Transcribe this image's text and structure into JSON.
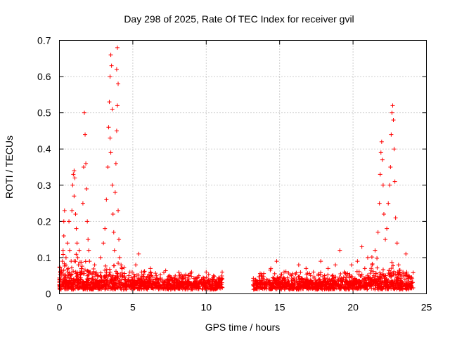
{
  "chart_data": {
    "type": "scatter",
    "title": "Day 298 of 2025, Rate Of TEC Index for receiver gvil",
    "xlabel": "GPS time / hours",
    "ylabel": "ROTI / TECUs",
    "xlim": [
      0,
      25
    ],
    "ylim": [
      0,
      0.7
    ],
    "xticks": [
      0,
      5,
      10,
      15,
      20,
      25
    ],
    "yticks": [
      0,
      0.1,
      0.2,
      0.3,
      0.4,
      0.5,
      0.6,
      0.7
    ],
    "xtick_labels": [
      "0",
      "5",
      "10",
      "15",
      "20",
      "25"
    ],
    "ytick_labels": [
      "0",
      "0.1",
      "0.2",
      "0.3",
      "0.4",
      "0.5",
      "0.6",
      "0.7"
    ],
    "grid": true,
    "marker": "+",
    "color": "#ff0000",
    "data_gap_hours": [
      11.1,
      13.2
    ],
    "series": [
      {
        "name": "ROTI",
        "points": [
          [
            0.05,
            0.02
          ],
          [
            0.1,
            0.04
          ],
          [
            0.15,
            0.06
          ],
          [
            0.2,
            0.09
          ],
          [
            0.25,
            0.12
          ],
          [
            0.3,
            0.2
          ],
          [
            0.35,
            0.23
          ],
          [
            0.3,
            0.16
          ],
          [
            0.4,
            0.05
          ],
          [
            0.45,
            0.1
          ],
          [
            0.5,
            0.03
          ],
          [
            0.55,
            0.14
          ],
          [
            0.6,
            0.07
          ],
          [
            0.65,
            0.2
          ],
          [
            0.7,
            0.12
          ],
          [
            0.75,
            0.05
          ],
          [
            0.8,
            0.09
          ],
          [
            0.85,
            0.23
          ],
          [
            0.9,
            0.3
          ],
          [
            0.95,
            0.33
          ],
          [
            1.0,
            0.34
          ],
          [
            1.05,
            0.32
          ],
          [
            1.0,
            0.27
          ],
          [
            1.1,
            0.22
          ],
          [
            1.15,
            0.18
          ],
          [
            1.2,
            0.14
          ],
          [
            1.25,
            0.1
          ],
          [
            1.3,
            0.08
          ],
          [
            1.35,
            0.12
          ],
          [
            1.4,
            0.06
          ],
          [
            1.45,
            0.04
          ],
          [
            1.5,
            0.07
          ],
          [
            1.6,
            0.25
          ],
          [
            1.65,
            0.35
          ],
          [
            1.7,
            0.5
          ],
          [
            1.75,
            0.44
          ],
          [
            1.8,
            0.36
          ],
          [
            1.85,
            0.29
          ],
          [
            1.9,
            0.2
          ],
          [
            1.95,
            0.15
          ],
          [
            2.0,
            0.12
          ],
          [
            2.05,
            0.09
          ],
          [
            2.1,
            0.06
          ],
          [
            2.2,
            0.04
          ],
          [
            2.4,
            0.08
          ],
          [
            2.6,
            0.05
          ],
          [
            2.8,
            0.1
          ],
          [
            3.0,
            0.14
          ],
          [
            3.1,
            0.18
          ],
          [
            3.2,
            0.26
          ],
          [
            3.3,
            0.35
          ],
          [
            3.35,
            0.46
          ],
          [
            3.4,
            0.53
          ],
          [
            3.45,
            0.6
          ],
          [
            3.5,
            0.66
          ],
          [
            3.55,
            0.63
          ],
          [
            3.6,
            0.51
          ],
          [
            3.45,
            0.43
          ],
          [
            3.5,
            0.39
          ],
          [
            3.6,
            0.3
          ],
          [
            3.65,
            0.22
          ],
          [
            3.7,
            0.17
          ],
          [
            3.75,
            0.12
          ],
          [
            3.8,
            0.28
          ],
          [
            3.85,
            0.36
          ],
          [
            3.9,
            0.45
          ],
          [
            3.95,
            0.52
          ],
          [
            4.0,
            0.58
          ],
          [
            3.9,
            0.62
          ],
          [
            3.95,
            0.68
          ],
          [
            4.0,
            0.23
          ],
          [
            4.05,
            0.15
          ],
          [
            4.1,
            0.1
          ],
          [
            4.2,
            0.08
          ],
          [
            4.3,
            0.05
          ],
          [
            4.5,
            0.04
          ],
          [
            4.8,
            0.06
          ],
          [
            5.2,
            0.08
          ],
          [
            5.4,
            0.11
          ],
          [
            5.6,
            0.06
          ],
          [
            5.9,
            0.04
          ],
          [
            6.2,
            0.07
          ],
          [
            6.6,
            0.05
          ],
          [
            7.0,
            0.04
          ],
          [
            7.5,
            0.05
          ],
          [
            8.0,
            0.04
          ],
          [
            8.5,
            0.05
          ],
          [
            9.0,
            0.06
          ],
          [
            9.5,
            0.05
          ],
          [
            10.0,
            0.06
          ],
          [
            10.5,
            0.05
          ],
          [
            11.0,
            0.03
          ],
          [
            13.3,
            0.03
          ],
          [
            13.8,
            0.05
          ],
          [
            14.4,
            0.07
          ],
          [
            14.8,
            0.09
          ],
          [
            15.3,
            0.06
          ],
          [
            15.8,
            0.05
          ],
          [
            16.3,
            0.08
          ],
          [
            16.8,
            0.07
          ],
          [
            17.3,
            0.06
          ],
          [
            17.8,
            0.09
          ],
          [
            18.3,
            0.07
          ],
          [
            18.8,
            0.08
          ],
          [
            19.1,
            0.12
          ],
          [
            19.4,
            0.06
          ],
          [
            19.9,
            0.08
          ],
          [
            20.3,
            0.09
          ],
          [
            20.6,
            0.13
          ],
          [
            20.8,
            0.07
          ],
          [
            21.0,
            0.1
          ],
          [
            21.3,
            0.08
          ],
          [
            21.5,
            0.12
          ],
          [
            21.7,
            0.17
          ],
          [
            21.8,
            0.25
          ],
          [
            21.85,
            0.33
          ],
          [
            21.9,
            0.39
          ],
          [
            21.95,
            0.42
          ],
          [
            22.0,
            0.37
          ],
          [
            22.05,
            0.3
          ],
          [
            22.1,
            0.22
          ],
          [
            22.2,
            0.15
          ],
          [
            22.3,
            0.18
          ],
          [
            22.4,
            0.25
          ],
          [
            22.5,
            0.3
          ],
          [
            22.55,
            0.35
          ],
          [
            22.6,
            0.44
          ],
          [
            22.65,
            0.5
          ],
          [
            22.7,
            0.52
          ],
          [
            22.75,
            0.48
          ],
          [
            22.8,
            0.4
          ],
          [
            22.85,
            0.31
          ],
          [
            22.9,
            0.21
          ],
          [
            23.0,
            0.14
          ],
          [
            23.1,
            0.08
          ],
          [
            23.4,
            0.06
          ],
          [
            23.6,
            0.11
          ],
          [
            23.8,
            0.05
          ],
          [
            24.0,
            0.03
          ]
        ]
      }
    ]
  }
}
